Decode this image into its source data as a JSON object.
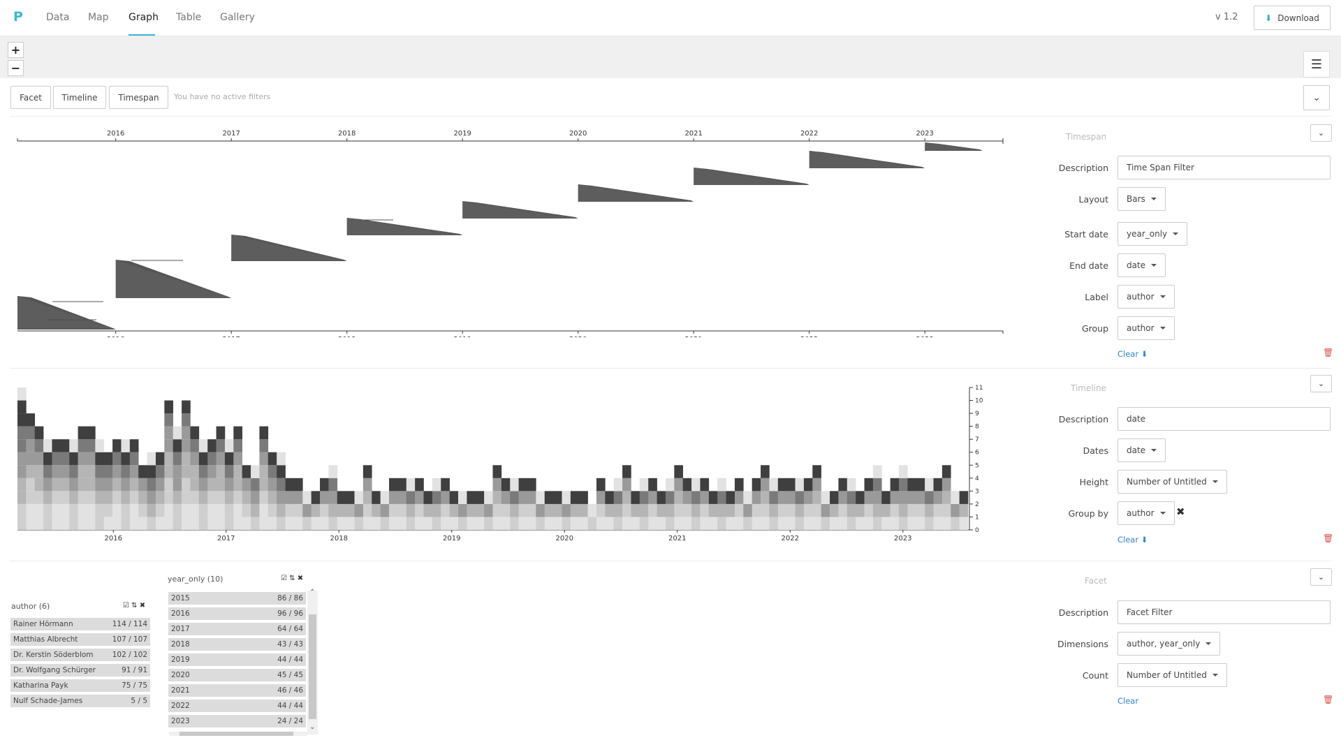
{
  "nav": {
    "logo": "P",
    "tabs": [
      "Data",
      "Map",
      "Graph",
      "Table",
      "Gallery"
    ],
    "active_tab": "Graph",
    "version": "v 1.2",
    "download_label": "Download"
  },
  "map_controls": {
    "zoom_in": "+",
    "zoom_out": "−"
  },
  "filters": {
    "buttons": [
      "Facet",
      "Timeline",
      "Timespan"
    ],
    "no_filters_text": "You have no active filters"
  },
  "timespan_panel": {
    "title": "Timespan",
    "fields": [
      {
        "label": "Description",
        "value": "Time Span Filter",
        "type": "text"
      },
      {
        "label": "Layout",
        "value": "Bars",
        "type": "select"
      },
      {
        "label": "Start date",
        "value": "year_only",
        "type": "select"
      },
      {
        "label": "End date",
        "value": "date",
        "type": "select"
      },
      {
        "label": "Label",
        "value": "author",
        "type": "select"
      },
      {
        "label": "Group",
        "value": "author",
        "type": "select"
      }
    ],
    "clear_label": "Clear"
  },
  "timeline_panel": {
    "title": "Timeline",
    "fields": [
      {
        "label": "Description",
        "value": "date",
        "type": "text"
      },
      {
        "label": "Dates",
        "value": "date",
        "type": "select"
      },
      {
        "label": "Height",
        "value": "Number of Untitled",
        "type": "select"
      },
      {
        "label": "Group by",
        "value": "author",
        "type": "select"
      }
    ],
    "clear_label": "Clear"
  },
  "facet_panel": {
    "title": "Facet",
    "fields": [
      {
        "label": "Description",
        "value": "Facet Filter",
        "type": "text"
      },
      {
        "label": "Dimensions",
        "value": "author, year_only",
        "type": "select"
      },
      {
        "label": "Count",
        "value": "Number of Untitled",
        "type": "select"
      }
    ],
    "clear_label": "Clear"
  },
  "chart_data": [
    {
      "type": "bar",
      "name_hint": "timespan",
      "x_ticks": [
        "2016",
        "2017",
        "2018",
        "2019",
        "2020",
        "2021",
        "2022",
        "2023"
      ],
      "spans": [
        {
          "start": "2015",
          "end": "2016"
        },
        {
          "start": "2016",
          "end": "2017"
        },
        {
          "start": "2017",
          "end": "2018"
        },
        {
          "start": "2018",
          "end": "2019"
        },
        {
          "start": "2019",
          "end": "2020"
        },
        {
          "start": "2020",
          "end": "2021"
        },
        {
          "start": "2021",
          "end": "2022"
        },
        {
          "start": "2022",
          "end": "2023"
        },
        {
          "start": "2023",
          "end": "2023.5"
        }
      ]
    },
    {
      "type": "bar",
      "name_hint": "timeline",
      "x_ticks": [
        "2016",
        "2017",
        "2018",
        "2019",
        "2020",
        "2021",
        "2022",
        "2023"
      ],
      "y_ticks": [
        0,
        1,
        2,
        3,
        4,
        5,
        6,
        7,
        8,
        9,
        10,
        11
      ],
      "ylim": [
        0,
        11
      ],
      "values": [
        11,
        9,
        8,
        7,
        7,
        7,
        7,
        8,
        8,
        7,
        6,
        7,
        7,
        7,
        5,
        6,
        6,
        10,
        8,
        10,
        8,
        7,
        7,
        8,
        7,
        8,
        5,
        5,
        8,
        6,
        6,
        4,
        4,
        3,
        3,
        4,
        5,
        3,
        3,
        3,
        5,
        3,
        3,
        4,
        4,
        4,
        4,
        3,
        4,
        4,
        3,
        3,
        3,
        3,
        3,
        5,
        4,
        4,
        4,
        4,
        3,
        3,
        3,
        3,
        3,
        3,
        2,
        4,
        3,
        4,
        5,
        3,
        4,
        4,
        3,
        4,
        5,
        4,
        4,
        4,
        3,
        4,
        3,
        4,
        3,
        4,
        5,
        4,
        4,
        4,
        4,
        4,
        5,
        3,
        3,
        4,
        4,
        3,
        4,
        5,
        3,
        4,
        5,
        4,
        4,
        4,
        4,
        5,
        3,
        3
      ]
    }
  ],
  "facets": [
    {
      "title": "author (6)",
      "items": [
        {
          "label": "Rainer Hörmann",
          "count": "114 / 114"
        },
        {
          "label": "Matthias Albrecht",
          "count": "107 / 107"
        },
        {
          "label": "Dr. Kerstin Söderblom",
          "count": "102 / 102"
        },
        {
          "label": "Dr. Wolfgang Schürger",
          "count": "91 / 91"
        },
        {
          "label": "Katharina Payk",
          "count": "75 / 75"
        },
        {
          "label": "Nulf Schade-James",
          "count": "5 / 5"
        }
      ]
    },
    {
      "title": "year_only (10)",
      "items": [
        {
          "label": "2015",
          "count": "86 / 86"
        },
        {
          "label": "2016",
          "count": "96 / 96"
        },
        {
          "label": "2017",
          "count": "64 / 64"
        },
        {
          "label": "2018",
          "count": "43 / 43"
        },
        {
          "label": "2019",
          "count": "44 / 44"
        },
        {
          "label": "2020",
          "count": "45 / 45"
        },
        {
          "label": "2021",
          "count": "46 / 46"
        },
        {
          "label": "2022",
          "count": "44 / 44"
        },
        {
          "label": "2023",
          "count": "24 / 24"
        }
      ]
    }
  ],
  "colors": {
    "accent": "#3bb6d6",
    "link": "#2f86c6",
    "danger": "#d9534f"
  }
}
